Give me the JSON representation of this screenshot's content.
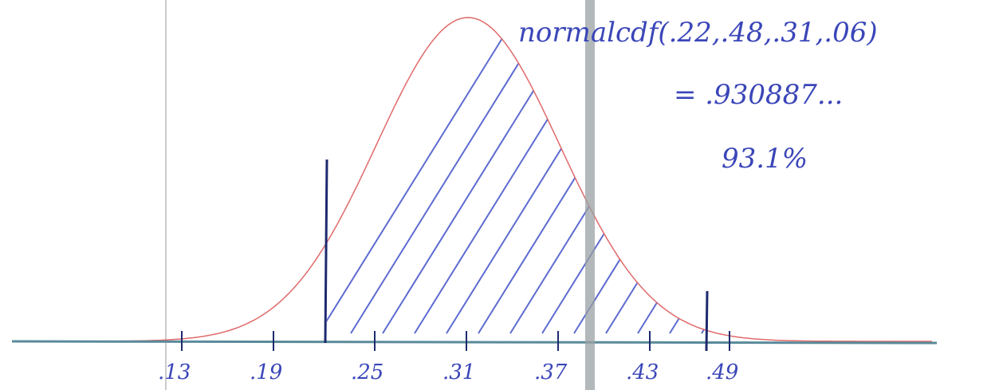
{
  "annotation": {
    "formula": "normalcdf(.22,.48,.31,.06)",
    "result": "= .930887...",
    "percent": "93.1%"
  },
  "axis": {
    "labels": [
      ".13",
      ".19",
      ".25",
      ".31",
      ".37",
      ".43",
      ".49"
    ]
  }
}
